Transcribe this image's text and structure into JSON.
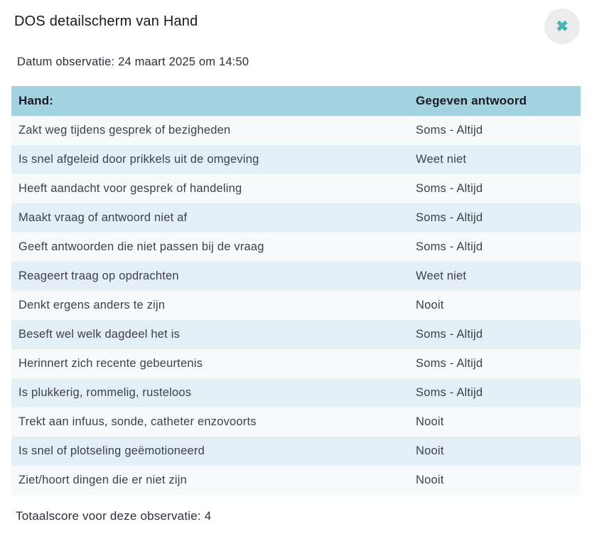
{
  "modal": {
    "title": "DOS detailscherm van Hand",
    "close_icon": "✖",
    "date_line": "Datum observatie: 24 maart 2025 om 14:50",
    "footer": "Totaalscore voor deze observatie: 4"
  },
  "table": {
    "headers": {
      "question": "Hand:",
      "answer": "Gegeven antwoord"
    },
    "rows": [
      {
        "question": "Zakt weg tijdens gesprek of bezigheden",
        "answer": "Soms - Altijd"
      },
      {
        "question": "Is snel afgeleid door prikkels uit de omgeving",
        "answer": "Weet niet"
      },
      {
        "question": "Heeft aandacht voor gesprek of handeling",
        "answer": "Soms - Altijd"
      },
      {
        "question": "Maakt vraag of antwoord niet af",
        "answer": "Soms - Altijd"
      },
      {
        "question": "Geeft antwoorden die niet passen bij de vraag",
        "answer": "Soms - Altijd"
      },
      {
        "question": "Reageert traag op opdrachten",
        "answer": "Weet niet"
      },
      {
        "question": "Denkt ergens anders te zijn",
        "answer": "Nooit"
      },
      {
        "question": "Beseft wel welk dagdeel het is",
        "answer": "Soms - Altijd"
      },
      {
        "question": "Herinnert zich recente gebeurtenis",
        "answer": "Soms - Altijd"
      },
      {
        "question": "Is plukkerig, rommelig, rusteloos",
        "answer": "Soms - Altijd"
      },
      {
        "question": "Trekt aan infuus, sonde, catheter enzovoorts",
        "answer": "Nooit"
      },
      {
        "question": "Is snel of plotseling geëmotioneerd",
        "answer": "Nooit"
      },
      {
        "question": "Ziet/hoort dingen die er niet zijn",
        "answer": "Nooit"
      }
    ]
  },
  "colors": {
    "header_bg": "#a3d2e0",
    "row_odd_bg": "#f7fafa",
    "row_even_bg": "#e4eff5",
    "accent_teal": "#4cb2b2",
    "close_circle_bg": "#ececec",
    "text": "#3f3f48",
    "title_text": "#17171f"
  }
}
